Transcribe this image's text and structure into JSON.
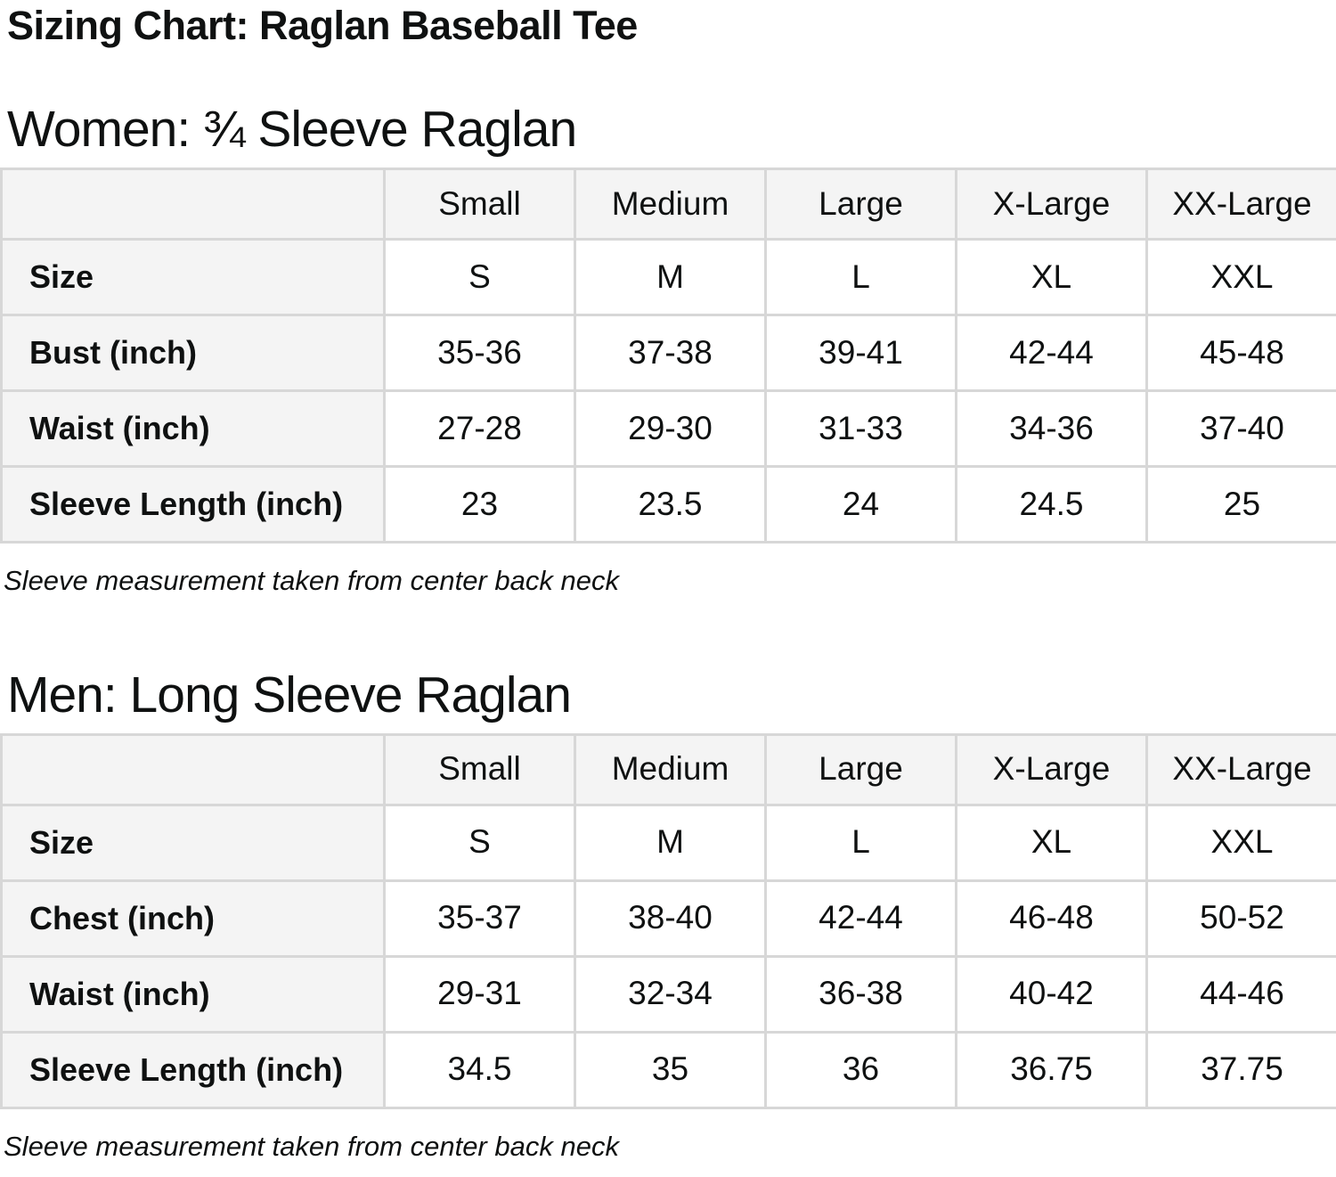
{
  "page": {
    "title": "Sizing Chart: Raglan Baseball Tee"
  },
  "colors": {
    "text": "#0f1111",
    "table_header_bg": "#f4f4f4",
    "table_border": "#d7d7d7",
    "background": "#ffffff"
  },
  "sections": [
    {
      "heading": "Women: ¾ Sleeve Raglan",
      "note": "Sleeve measurement taken from center back neck",
      "table": {
        "column_headers": [
          "",
          "Small",
          "Medium",
          "Large",
          "X-Large",
          "XX-Large"
        ],
        "rows": [
          {
            "label": "Size",
            "values": [
              "S",
              "M",
              "L",
              "XL",
              "XXL"
            ]
          },
          {
            "label": "Bust (inch)",
            "values": [
              "35-36",
              "37-38",
              "39-41",
              "42-44",
              "45-48"
            ]
          },
          {
            "label": "Waist (inch)",
            "values": [
              "27-28",
              "29-30",
              "31-33",
              "34-36",
              "37-40"
            ]
          },
          {
            "label": "Sleeve Length (inch)",
            "values": [
              "23",
              "23.5",
              "24",
              "24.5",
              "25"
            ]
          }
        ]
      }
    },
    {
      "heading": "Men: Long Sleeve Raglan",
      "note": "Sleeve measurement taken from center back neck",
      "table": {
        "column_headers": [
          "",
          "Small",
          "Medium",
          "Large",
          "X-Large",
          "XX-Large"
        ],
        "rows": [
          {
            "label": "Size",
            "values": [
              "S",
              "M",
              "L",
              "XL",
              "XXL"
            ]
          },
          {
            "label": "Chest (inch)",
            "values": [
              "35-37",
              "38-40",
              "42-44",
              "46-48",
              "50-52"
            ]
          },
          {
            "label": "Waist (inch)",
            "values": [
              "29-31",
              "32-34",
              "36-38",
              "40-42",
              "44-46"
            ]
          },
          {
            "label": "Sleeve Length (inch)",
            "values": [
              "34.5",
              "35",
              "36",
              "36.75",
              "37.75"
            ]
          }
        ]
      }
    }
  ]
}
